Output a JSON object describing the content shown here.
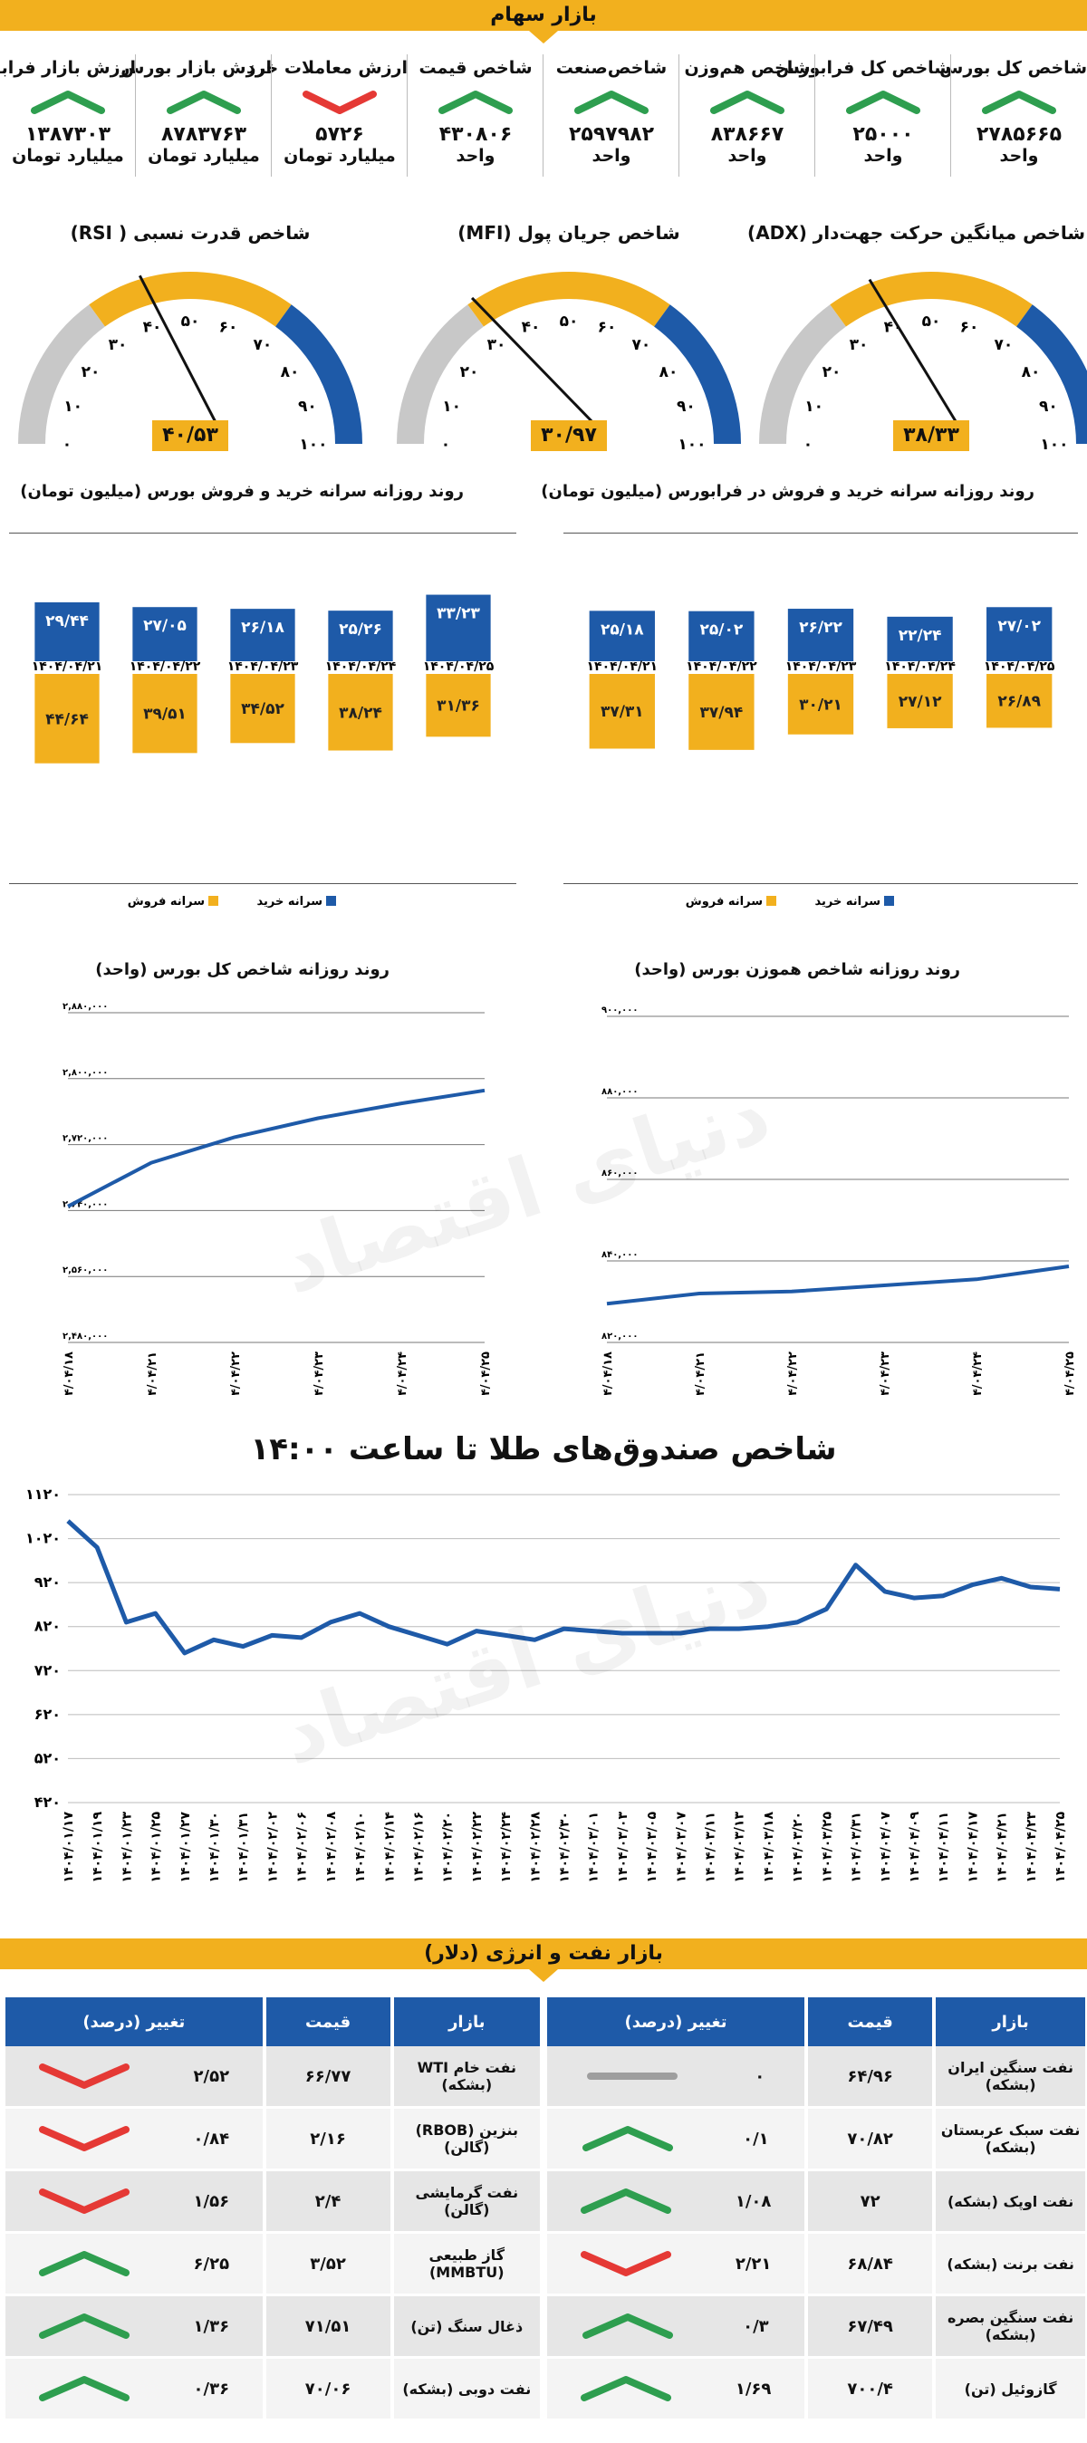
{
  "header": {
    "title": "بازار سهام"
  },
  "stats": [
    {
      "label": "شاخص کل بورس",
      "value": "۲۷۸۵۶۶۵",
      "unit": "واحد",
      "trend": "up"
    },
    {
      "label": "شاخص کل فرابورس",
      "value": "۲۵۰۰۰",
      "unit": "واحد",
      "trend": "up"
    },
    {
      "label": "شاخص هم‌وزن",
      "value": "۸۳۸۶۶۷",
      "unit": "واحد",
      "trend": "up"
    },
    {
      "label": "شاخص‌صنعت",
      "value": "۲۵۹۷۹۸۲",
      "unit": "واحد",
      "trend": "up"
    },
    {
      "label": "شاخص قیمت",
      "value": "۴۳۰۸۰۶",
      "unit": "واحد",
      "trend": "up"
    },
    {
      "label": "ارزش معاملات خرد",
      "value": "۵۷۲۶",
      "unit": "میلیارد تومان",
      "trend": "down"
    },
    {
      "label": "ارزش بازار بورس",
      "value": "۸۷۸۳۷۶۳",
      "unit": "میلیارد تومان",
      "trend": "up"
    },
    {
      "label": "ارزش بازار فرابورس",
      "value": "۱۳۸۷۳۰۳",
      "unit": "میلیارد تومان",
      "trend": "up"
    }
  ],
  "gauges": [
    {
      "title": "شاخص میانگین حرکت جهت‌دار (ADX)",
      "value": 38.33,
      "display": "۳۸/۳۳",
      "ticks": [
        "۰",
        "۱۰",
        "۲۰",
        "۳۰",
        "۴۰",
        "۵۰",
        "۶۰",
        "۷۰",
        "۸۰",
        "۹۰",
        "۱۰۰"
      ]
    },
    {
      "title": "شاخص جریان پول (MFI)",
      "value": 30.97,
      "display": "۳۰/۹۷",
      "ticks": [
        "۰",
        "۱۰",
        "۲۰",
        "۳۰",
        "۴۰",
        "۵۰",
        "۶۰",
        "۷۰",
        "۸۰",
        "۹۰",
        "۱۰۰"
      ]
    },
    {
      "title": "شاخص قدرت نسبی ( RSI)",
      "value": 40.53,
      "display": "۴۰/۵۳",
      "ticks": [
        "۰",
        "۱۰",
        "۲۰",
        "۳۰",
        "۴۰",
        "۵۰",
        "۶۰",
        "۷۰",
        "۸۰",
        "۹۰",
        "۱۰۰"
      ]
    }
  ],
  "colors": {
    "gold": "#f2b01e",
    "blue": "#1e5aa8",
    "gray": "#c8c8c8",
    "up": "#2e9e4f",
    "down": "#e53935",
    "flat": "#9e9e9e"
  },
  "chart_data": [
    {
      "type": "bar",
      "title": "روند روزانه سرانه خرید و فروش در فرابورس (میلیون تومان)",
      "categories": [
        "۱۴۰۴/۰۴/۲۱",
        "۱۴۰۴/۰۴/۲۲",
        "۱۴۰۴/۰۴/۲۳",
        "۱۴۰۴/۰۴/۲۴",
        "۱۴۰۴/۰۴/۲۵"
      ],
      "series": [
        {
          "name": "سرانه خرید",
          "values": [
            25.18,
            25.02,
            26.22,
            22.24,
            27.02
          ],
          "labels": [
            "۲۵/۱۸",
            "۲۵/۰۲",
            "۲۶/۲۲",
            "۲۲/۲۴",
            "۲۷/۰۲"
          ]
        },
        {
          "name": "سرانه فروش",
          "values": [
            37.31,
            37.94,
            30.21,
            27.12,
            26.89
          ],
          "labels": [
            "۳۷/۳۱",
            "۳۷/۹۴",
            "۳۰/۲۱",
            "۲۷/۱۲",
            "۲۶/۸۹"
          ]
        }
      ]
    },
    {
      "type": "bar",
      "title": "روند روزانه سرانه خرید و فروش بورس (میلیون تومان)",
      "categories": [
        "۱۴۰۴/۰۴/۲۱",
        "۱۴۰۴/۰۴/۲۲",
        "۱۴۰۴/۰۴/۲۳",
        "۱۴۰۴/۰۴/۲۴",
        "۱۴۰۴/۰۴/۲۵"
      ],
      "series": [
        {
          "name": "سرانه خرید",
          "values": [
            29.44,
            27.05,
            26.18,
            25.26,
            33.23
          ],
          "labels": [
            "۲۹/۴۴",
            "۲۷/۰۵",
            "۲۶/۱۸",
            "۲۵/۲۶",
            "۳۳/۲۳"
          ]
        },
        {
          "name": "سرانه فروش",
          "values": [
            44.64,
            39.51,
            34.52,
            38.24,
            31.36
          ],
          "labels": [
            "۴۴/۶۴",
            "۳۹/۵۱",
            "۳۴/۵۲",
            "۳۸/۲۴",
            "۳۱/۳۶"
          ]
        }
      ]
    },
    {
      "type": "line",
      "title": "روند روزانه شاخص کل بورس (واحد)",
      "x": [
        "۱۴۰۴/۰۴/۱۸",
        "۱۴۰۴/۰۴/۲۱",
        "۱۴۰۴/۰۴/۲۲",
        "۱۴۰۴/۰۴/۲۳",
        "۱۴۰۴/۰۴/۲۴",
        "۱۴۰۴/۰۴/۲۵"
      ],
      "y": [
        2645000,
        2698000,
        2729000,
        2752000,
        2770000,
        2785665
      ],
      "ylim": [
        2480000,
        2880000
      ],
      "yticks": [
        2480000,
        2560000,
        2640000,
        2720000,
        2800000,
        2880000
      ],
      "ytick_labels": [
        "۲,۴۸۰,۰۰۰",
        "۲,۵۶۰,۰۰۰",
        "۲,۶۴۰,۰۰۰",
        "۲,۷۲۰,۰۰۰",
        "۲,۸۰۰,۰۰۰",
        "۲,۸۸۰,۰۰۰"
      ]
    },
    {
      "type": "line",
      "title": "روند روزانه شاخص هموزن بورس (واحد)",
      "x": [
        "۱۴۰۴/۰۴/۱۸",
        "۱۴۰۴/۰۴/۲۱",
        "۱۴۰۴/۰۴/۲۲",
        "۱۴۰۴/۰۴/۲۳",
        "۱۴۰۴/۰۴/۲۴",
        "۱۴۰۴/۰۴/۲۵"
      ],
      "y": [
        829500,
        832000,
        832500,
        834000,
        835500,
        838667
      ],
      "ylim": [
        820000,
        900000
      ],
      "yticks": [
        820000,
        840000,
        860000,
        880000,
        900000
      ],
      "ytick_labels": [
        "۸۲۰,۰۰۰",
        "۸۴۰,۰۰۰",
        "۸۶۰,۰۰۰",
        "۸۸۰,۰۰۰",
        "۹۰۰,۰۰۰"
      ]
    },
    {
      "type": "line",
      "title": "شاخص صندوق‌های طلا تا ساعت ۱۴:۰۰",
      "x": [
        "۱۴۰۴/۰۱/۱۷",
        "۱۴۰۴/۰۱/۱۹",
        "۱۴۰۴/۰۱/۲۳",
        "۱۴۰۴/۰۱/۲۵",
        "۱۴۰۴/۰۱/۲۷",
        "۱۴۰۴/۰۱/۳۰",
        "۱۴۰۴/۰۱/۳۱",
        "۱۴۰۴/۰۲/۰۲",
        "۱۴۰۴/۰۲/۰۶",
        "۱۴۰۴/۰۲/۰۸",
        "۱۴۰۴/۰۲/۱۰",
        "۱۴۰۴/۰۲/۱۴",
        "۱۴۰۴/۰۲/۱۶",
        "۱۴۰۴/۰۲/۲۰",
        "۱۴۰۴/۰۲/۲۲",
        "۱۴۰۴/۰۲/۲۴",
        "۱۴۰۴/۰۲/۲۸",
        "۱۴۰۴/۰۲/۳۰",
        "۱۴۰۴/۰۳/۰۱",
        "۱۴۰۴/۰۳/۰۳",
        "۱۴۰۴/۰۳/۰۵",
        "۱۴۰۴/۰۳/۰۷",
        "۱۴۰۴/۰۳/۱۱",
        "۱۴۰۴/۰۳/۱۳",
        "۱۴۰۴/۰۳/۱۸",
        "۱۴۰۴/۰۳/۲۰",
        "۱۴۰۴/۰۳/۲۵",
        "۱۴۰۴/۰۳/۳۱",
        "۱۴۰۴/۰۴/۰۷",
        "۱۴۰۴/۰۴/۰۹",
        "۱۴۰۴/۰۴/۱۱",
        "۱۴۰۴/۰۴/۱۷",
        "۱۴۰۴/۰۴/۲۱",
        "۱۴۰۴/۰۴/۲۳",
        "۱۴۰۴/۰۴/۲۵"
      ],
      "y": [
        1060,
        1000,
        830,
        850,
        760,
        790,
        775,
        800,
        795,
        830,
        850,
        820,
        800,
        780,
        810,
        800,
        790,
        815,
        810,
        805,
        805,
        805,
        815,
        815,
        820,
        830,
        860,
        960,
        900,
        885,
        890,
        915,
        930,
        910,
        905
      ],
      "ylim": [
        420,
        1120
      ],
      "yticks": [
        420,
        520,
        620,
        720,
        820,
        920,
        1020,
        1120
      ],
      "ytick_labels": [
        "۴۲۰",
        "۵۲۰",
        "۶۲۰",
        "۷۲۰",
        "۸۲۰",
        "۹۲۰",
        "۱۰۲۰",
        "۱۱۲۰"
      ]
    },
    {
      "type": "table",
      "title": "بازار نفت و انرژی (دلار)",
      "columns": [
        "بازار",
        "قیمت",
        "تغییر (درصد)"
      ],
      "right_rows": [
        {
          "market": "نفت سنگین ایران (بشکه)",
          "price": "۶۴/۹۶",
          "change": "۰",
          "trend": "flat"
        },
        {
          "market": "نفت سبک عربستان (بشکه)",
          "price": "۷۰/۸۲",
          "change": "۰/۱",
          "trend": "up"
        },
        {
          "market": "نفت اوپک (بشکه)",
          "price": "۷۲",
          "change": "۱/۰۸",
          "trend": "up"
        },
        {
          "market": "نفت برنت (بشکه)",
          "price": "۶۸/۸۴",
          "change": "۲/۲۱",
          "trend": "down"
        },
        {
          "market": "نفت سنگین بصره (بشکه)",
          "price": "۶۷/۴۹",
          "change": "۰/۳",
          "trend": "up"
        },
        {
          "market": "گازوئیل (تن)",
          "price": "۷۰۰/۴",
          "change": "۱/۶۹",
          "trend": "up"
        }
      ],
      "left_rows": [
        {
          "market": "نفت خام WTI (بشکه)",
          "price": "۶۶/۷۷",
          "change": "۲/۵۲",
          "trend": "down"
        },
        {
          "market": "بنزین (RBOB) (گالن)",
          "price": "۲/۱۶",
          "change": "۰/۸۴",
          "trend": "down"
        },
        {
          "market": "نفت گرمایشی (گالن)",
          "price": "۲/۴",
          "change": "۱/۵۶",
          "trend": "down"
        },
        {
          "market": "گاز طبیعی (MMBTU)",
          "price": "۳/۵۲",
          "change": "۶/۲۵",
          "trend": "up"
        },
        {
          "market": "ذغال سنگ (تن)",
          "price": "۷۱/۵۱",
          "change": "۱/۳۶",
          "trend": "up"
        },
        {
          "market": "نفت دوبی (بشکه)",
          "price": "۷۰/۰۶",
          "change": "۰/۳۶",
          "trend": "up"
        }
      ]
    }
  ],
  "energy": {
    "title": "بازار نفت و انرژی (دلار)"
  },
  "gold": {
    "title": "شاخص صندوق‌های طلا تا ساعت ۱۴:۰۰"
  }
}
